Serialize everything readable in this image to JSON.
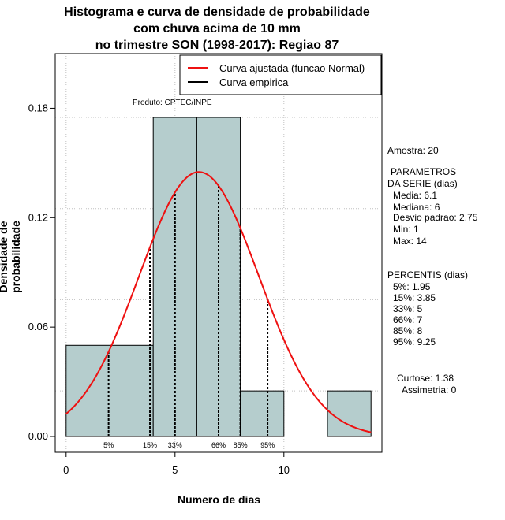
{
  "title_lines": [
    "Histograma e curva de densidade de probabilidade",
    "com chuva acima de 10 mm",
    "no trimestre SON (1998-2017): Regiao 87"
  ],
  "credit": "Produto: CPTEC/INPE",
  "stats": {
    "sample": "Amostra: 20",
    "params_title_1": "PARAMETROS",
    "params_title_2": "DA SERIE (dias)",
    "params": [
      "Media: 6.1",
      "Mediana: 6",
      "Desvio padrao: 2.75",
      "Min: 1",
      "Max: 14"
    ],
    "percentis_title": "PERCENTIS (dias)",
    "percentis": [
      "5%: 1.95",
      "15%: 3.85",
      "33%: 5",
      "66%: 7",
      "85%: 8",
      "95%: 9.25"
    ],
    "curtose": "Curtose: 1.38",
    "assimetria": "Assimetria: 0"
  },
  "chart_data": {
    "type": "bar",
    "title": "Histograma e curva de densidade de probabilidade com chuva acima de 10 mm no trimestre SON (1998-2017): Regiao 87",
    "xlabel": "Numero de dias",
    "ylabel": "Densidade de probabilidade",
    "xlim": [
      -0.5,
      14.5
    ],
    "ylim": [
      0,
      0.21
    ],
    "x_ticks": [
      0,
      5,
      10
    ],
    "y_ticks": [
      0.0,
      0.06,
      0.12,
      0.18
    ],
    "y_tick_labels": [
      "0.00",
      "0.06",
      "0.12",
      "0.18"
    ],
    "grid": true,
    "bins": [
      {
        "x0": 0,
        "x1": 4,
        "density": 0.05
      },
      {
        "x0": 4,
        "x1": 6,
        "density": 0.175
      },
      {
        "x0": 6,
        "x1": 8,
        "density": 0.175
      },
      {
        "x0": 8,
        "x1": 10,
        "density": 0.025
      },
      {
        "x0": 10,
        "x1": 12,
        "density": 0.0
      },
      {
        "x0": 12,
        "x1": 14,
        "density": 0.025
      }
    ],
    "normal_fit": {
      "mean": 6.1,
      "sd": 2.75,
      "x_from": 0,
      "x_to": 14
    },
    "percentiles": [
      {
        "label": "5%",
        "x": 1.95
      },
      {
        "label": "15%",
        "x": 3.85
      },
      {
        "label": "33%",
        "x": 5
      },
      {
        "label": "66%",
        "x": 7
      },
      {
        "label": "85%",
        "x": 8
      },
      {
        "label": "95%",
        "x": 9.25
      }
    ],
    "legend": {
      "placement": "top-right",
      "entries": [
        {
          "label": "Curva ajustada (funcao Normal)",
          "color": "#ee1111"
        },
        {
          "label": "Curva empirica",
          "color": "#000000"
        }
      ]
    },
    "colors": {
      "bar_fill": "#b5cdcd",
      "curve": "#ee1111",
      "grid": "#c0c0c0"
    }
  }
}
